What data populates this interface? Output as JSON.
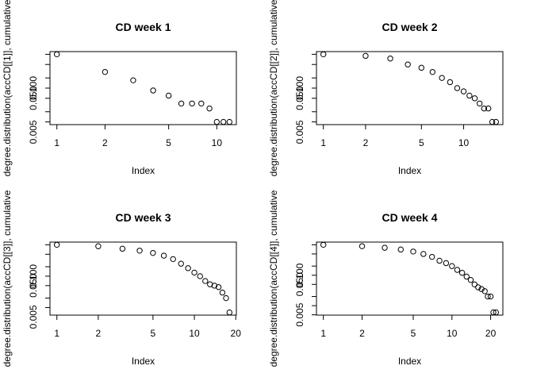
{
  "chart_data": [
    {
      "type": "scatter",
      "title": "CD week 1",
      "xlabel": "Index",
      "ylabel": "degree.distribution(accCD[[1]], cumulative",
      "x_scale": "log",
      "y_scale": "log",
      "x_ticks": [
        1,
        2,
        5,
        10
      ],
      "y_ticks": [
        0.005,
        0.05,
        0.1
      ],
      "y_tick_labels": [
        "0.005",
        "0.050",
        "0.100"
      ],
      "grid": false,
      "series": [
        {
          "x": [
            1,
            2,
            3,
            4,
            5,
            6,
            7,
            8,
            9,
            10,
            11,
            12
          ],
          "y": [
            1.0,
            0.3,
            0.17,
            0.085,
            0.06,
            0.035,
            0.035,
            0.035,
            0.025,
            0.01,
            0.01,
            0.01
          ]
        }
      ]
    },
    {
      "type": "scatter",
      "title": "CD week 2",
      "xlabel": "Index",
      "ylabel": "degree.distribution(accCD[[2]], cumulative",
      "x_scale": "log",
      "y_scale": "log",
      "x_ticks": [
        1,
        2,
        5,
        10
      ],
      "y_ticks": [
        0.005,
        0.05,
        0.1
      ],
      "y_tick_labels": [
        "0.005",
        "0.050",
        "0.100"
      ],
      "grid": false,
      "series": [
        {
          "x": [
            1,
            2,
            3,
            4,
            5,
            6,
            7,
            8,
            9,
            10,
            11,
            12,
            13,
            14,
            15,
            16,
            17
          ],
          "y": [
            1.0,
            0.9,
            0.75,
            0.5,
            0.4,
            0.3,
            0.2,
            0.15,
            0.1,
            0.08,
            0.06,
            0.05,
            0.035,
            0.025,
            0.025,
            0.01,
            0.01
          ]
        }
      ]
    },
    {
      "type": "scatter",
      "title": "CD week 3",
      "xlabel": "Index",
      "ylabel": "degree.distribution(accCD[[3]], cumulative",
      "x_scale": "log",
      "y_scale": "log",
      "x_ticks": [
        1,
        2,
        5,
        10,
        20
      ],
      "y_ticks": [
        0.005,
        0.05,
        0.1
      ],
      "y_tick_labels": [
        "0.005",
        "0.050",
        "0.100"
      ],
      "grid": false,
      "series": [
        {
          "x": [
            1,
            2,
            3,
            4,
            5,
            6,
            7,
            8,
            9,
            10,
            11,
            12,
            13,
            14,
            15,
            16,
            17,
            18
          ],
          "y": [
            1.0,
            0.9,
            0.75,
            0.65,
            0.55,
            0.45,
            0.35,
            0.25,
            0.18,
            0.13,
            0.1,
            0.07,
            0.055,
            0.05,
            0.045,
            0.03,
            0.02,
            0.007
          ]
        }
      ]
    },
    {
      "type": "scatter",
      "title": "CD week 4",
      "xlabel": "Index",
      "ylabel": "degree.distribution(accCD[[4]], cumulative",
      "x_scale": "log",
      "y_scale": "log",
      "x_ticks": [
        1,
        2,
        5,
        10,
        20
      ],
      "y_ticks": [
        0.005,
        0.05,
        0.1
      ],
      "y_tick_labels": [
        "0.005",
        "0.050",
        "0.100"
      ],
      "grid": false,
      "series": [
        {
          "x": [
            1,
            2,
            3,
            4,
            5,
            6,
            7,
            8,
            9,
            10,
            11,
            12,
            13,
            14,
            15,
            16,
            17,
            18,
            19,
            20,
            21,
            22
          ],
          "y": [
            1.0,
            0.9,
            0.8,
            0.7,
            0.6,
            0.5,
            0.4,
            0.3,
            0.25,
            0.2,
            0.15,
            0.12,
            0.09,
            0.07,
            0.05,
            0.04,
            0.035,
            0.03,
            0.02,
            0.02,
            0.006,
            0.006
          ]
        }
      ]
    }
  ]
}
